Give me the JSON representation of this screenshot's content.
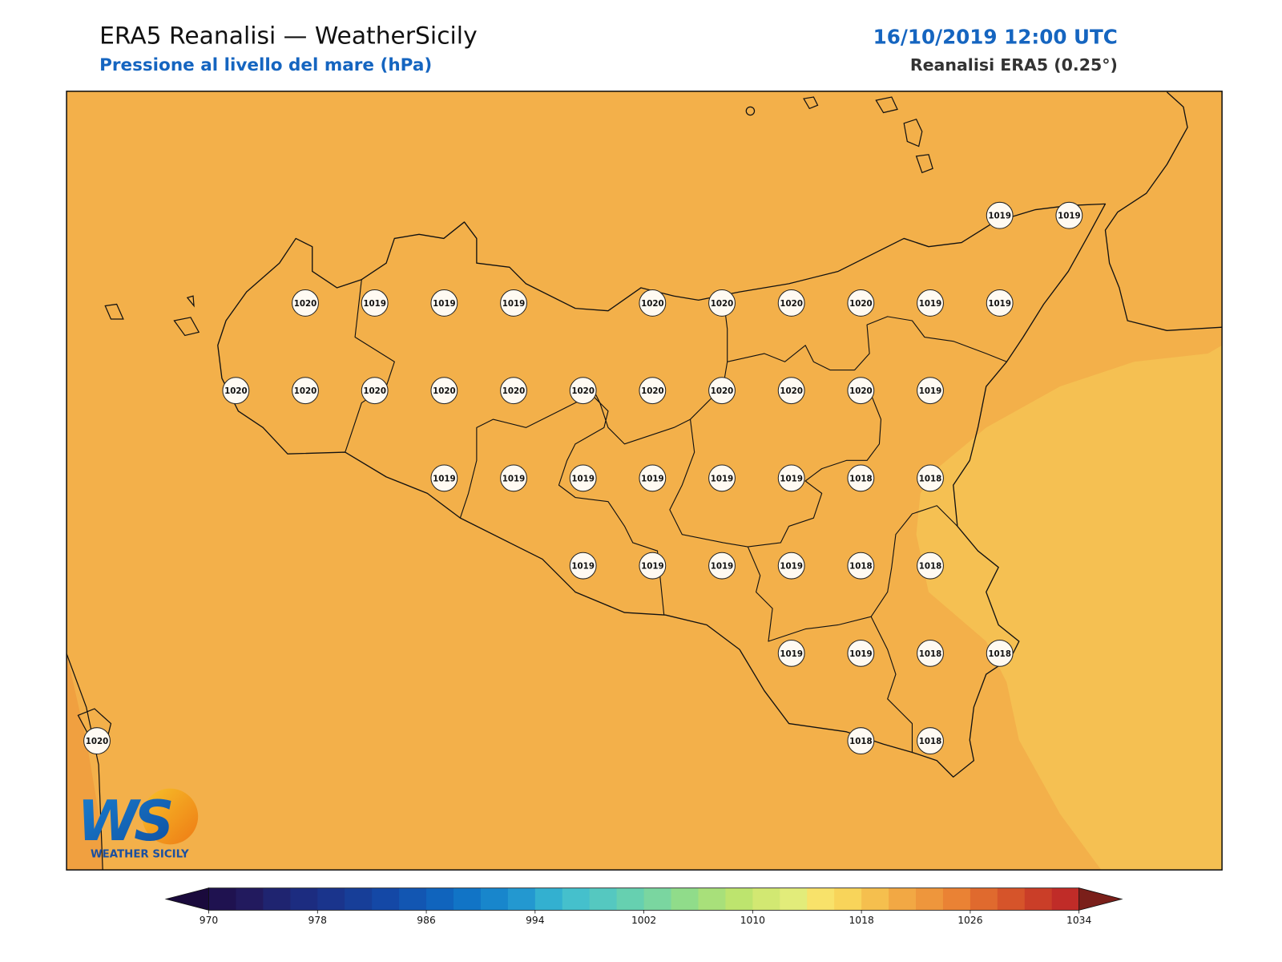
{
  "header": {
    "title": "ERA5 Reanalisi — WeatherSicily",
    "subtitle": "Pressione al livello del mare (hPa)",
    "datetime": "16/10/2019 12:00 UTC",
    "source": "Reanalisi ERA5 (0.25°)"
  },
  "stations": {
    "rows": [
      [
        null,
        null,
        null,
        null,
        null,
        null,
        null,
        null,
        null,
        null,
        null,
        null,
        null,
        1019,
        1019
      ],
      [
        null,
        null,
        null,
        1020,
        1019,
        1019,
        1019,
        null,
        1020,
        1020,
        1020,
        1020,
        1019,
        1019,
        null
      ],
      [
        null,
        null,
        1020,
        1020,
        1020,
        1020,
        1020,
        1020,
        1020,
        1020,
        1020,
        1020,
        1019,
        null,
        null
      ],
      [
        null,
        null,
        null,
        null,
        null,
        1019,
        1019,
        1019,
        1019,
        1019,
        1019,
        1018,
        1018,
        null,
        null
      ],
      [
        null,
        null,
        null,
        null,
        null,
        null,
        null,
        1019,
        1019,
        1019,
        1019,
        1018,
        1018,
        null,
        null
      ],
      [
        null,
        null,
        null,
        null,
        null,
        null,
        null,
        null,
        null,
        null,
        1019,
        1019,
        1018,
        1018,
        null
      ],
      [
        1020,
        null,
        null,
        null,
        null,
        null,
        null,
        null,
        null,
        null,
        null,
        1018,
        1018,
        null,
        null
      ]
    ]
  },
  "colorbar": {
    "ticks": [
      970,
      978,
      986,
      994,
      1002,
      1010,
      1018,
      1026,
      1034
    ],
    "colors": [
      "#1f1250",
      "#221a5e",
      "#1f2470",
      "#1c2c80",
      "#1a348c",
      "#173e98",
      "#1448a6",
      "#1256b2",
      "#1064bd",
      "#1174c6",
      "#1886cc",
      "#2398d0",
      "#33b0d0",
      "#45c0cc",
      "#55c8c0",
      "#66d0b0",
      "#7ad6a0",
      "#90dc8a",
      "#a8e07a",
      "#bde46e",
      "#d2e872",
      "#e2ec7a",
      "#f8e26a",
      "#f8d45a",
      "#f5bf4e",
      "#f2a844",
      "#ee963c",
      "#ea8234",
      "#e06a2e",
      "#d6542a",
      "#ca3e28",
      "#c02c28"
    ],
    "under_color": "#1a0a3c",
    "over_color": "#7a1f1a"
  },
  "logo": {
    "initials": "WS",
    "name": "WEATHER SICILY"
  }
}
